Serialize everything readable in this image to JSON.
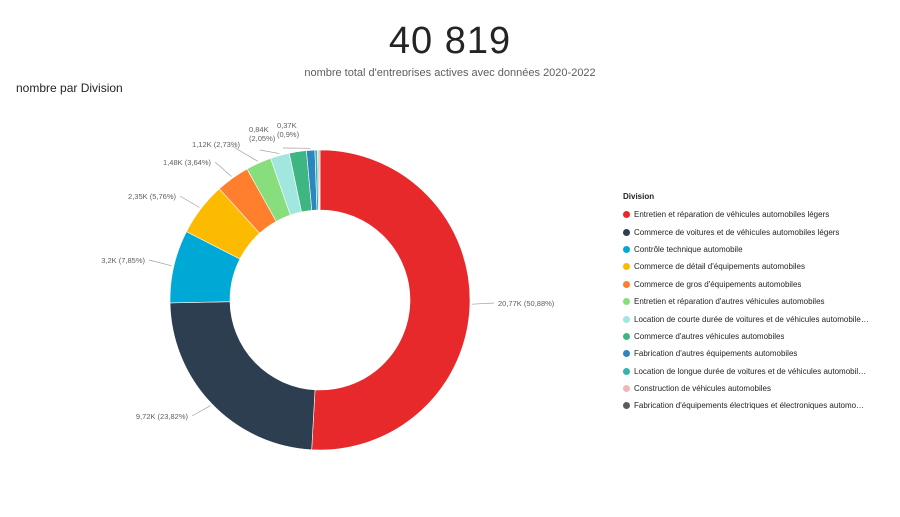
{
  "kpi": {
    "value": "40 819",
    "subtitle": "nombre total d'entreprises actives avec données 2020-2022"
  },
  "chart_title": "nombre par Division",
  "chart_data": {
    "type": "pie",
    "title": "nombre par Division",
    "legend_title": "Division",
    "legend_position": "right",
    "slices": [
      {
        "name": "Entretien et réparation de véhicules automobiles légers",
        "value": 20770,
        "label": "20,77K (50,88%)",
        "color": "#e8292b"
      },
      {
        "name": "Commerce de voitures et de véhicules automobiles légers",
        "value": 9720,
        "label": "9,72K (23,82%)",
        "color": "#2d3e50"
      },
      {
        "name": "Contrôle technique automobile",
        "value": 3200,
        "label": "3,2K (7,85%)",
        "color": "#00a8d6"
      },
      {
        "name": "Commerce de détail d'équipements automobiles",
        "value": 2350,
        "label": "2,35K (5,76%)",
        "color": "#fcbb00"
      },
      {
        "name": "Commerce de gros d'équipements automobiles",
        "value": 1480,
        "label": "1,48K (3,64%)",
        "color": "#ff7f2f"
      },
      {
        "name": "Entretien et réparation d'autres véhicules automobiles",
        "value": 1120,
        "label": "1,12K (2,73%)",
        "color": "#88de7c"
      },
      {
        "name": "Location de courte durée de voitures et de véhicules automobile…",
        "value": 840,
        "label": "0,84K (2,05%)",
        "color": "#a2e6e0"
      },
      {
        "name": "Commerce d'autres véhicules automobiles",
        "value": 750,
        "label": "",
        "color": "#3db683"
      },
      {
        "name": "Fabrication d'autres équipements automobiles",
        "value": 370,
        "label": "0,37K (0,9%)",
        "color": "#2e86c1"
      },
      {
        "name": "Location de longue durée de voitures et de véhicules automobil…",
        "value": 110,
        "label": "",
        "color": "#35b3ad"
      },
      {
        "name": "Construction de véhicules automobiles",
        "value": 70,
        "label": "",
        "color": "#f1b7b3"
      },
      {
        "name": "Fabrication d'équipements électriques et électroniques automo…",
        "value": 40,
        "label": "",
        "color": "#5c5c5c"
      }
    ]
  }
}
